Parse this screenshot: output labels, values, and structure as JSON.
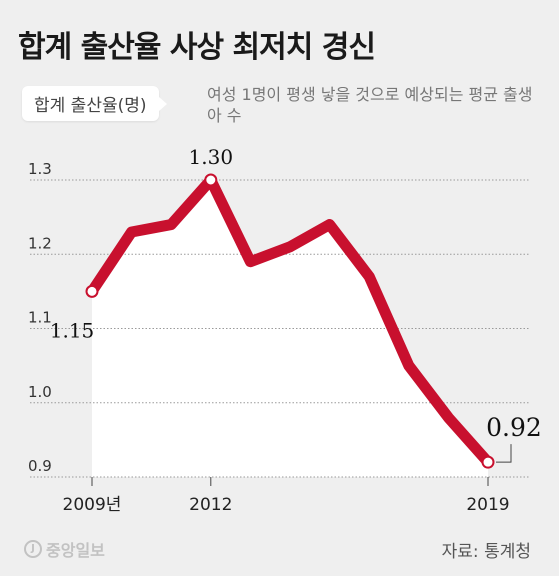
{
  "title": "합계 출산율 사상 최저치 경신",
  "label": "합계 출산율(명)",
  "subtitle": "여성 1명이 평생 낳을 것으로 예상되는 평균 출생아 수",
  "source": "자료: 통계청",
  "logo": "중앙일보",
  "colors": {
    "line": "#c8102e",
    "grid": "#9a9a9a",
    "area": "#ffffff"
  },
  "chart_data": {
    "type": "line",
    "x": [
      2009,
      2010,
      2011,
      2012,
      2013,
      2014,
      2015,
      2016,
      2017,
      2018,
      2019
    ],
    "values": [
      1.15,
      1.23,
      1.24,
      1.3,
      1.19,
      1.21,
      1.24,
      1.17,
      1.05,
      0.98,
      0.92
    ],
    "yticks": [
      "1.3",
      "1.2",
      "1.1",
      "1.0",
      "0.9"
    ],
    "ytick_values": [
      1.3,
      1.2,
      1.1,
      1.0,
      0.9
    ],
    "xtick_labels": [
      "2009년",
      "2012",
      "2019"
    ],
    "xtick_positions": [
      2009,
      2012,
      2019
    ],
    "data_labels": [
      {
        "x": 2009,
        "text": "1.15"
      },
      {
        "x": 2012,
        "text": "1.30"
      },
      {
        "x": 2019,
        "text": "0.92"
      }
    ],
    "ylim": [
      0.9,
      1.3
    ],
    "grid": true
  }
}
